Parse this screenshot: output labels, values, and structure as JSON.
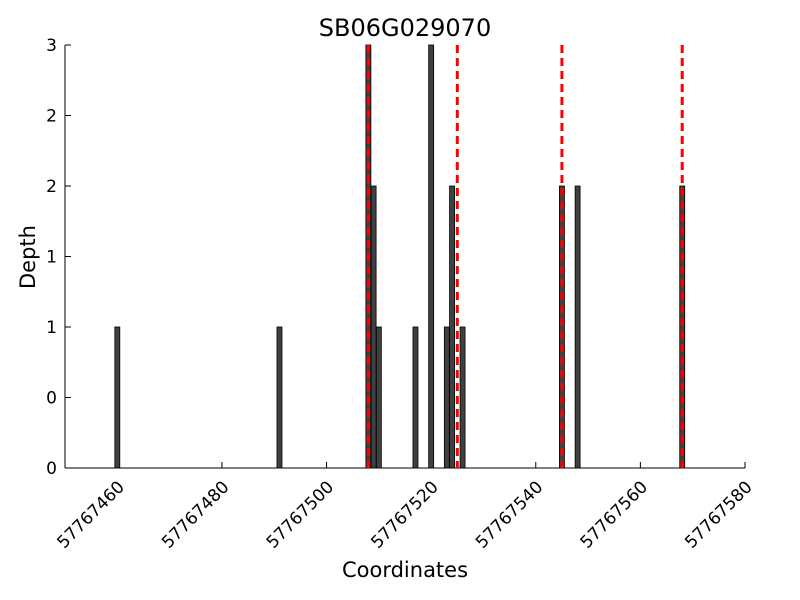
{
  "chart_data": {
    "type": "bar",
    "title": "SB06G029070",
    "xlabel": "Coordinates",
    "ylabel": "Depth",
    "xlim": [
      57767450,
      57767580
    ],
    "ylim": [
      0,
      3
    ],
    "x_ticks": [
      57767460,
      57767480,
      57767500,
      57767520,
      57767540,
      57767560,
      57767580
    ],
    "y_ticks": [
      0,
      0.5,
      1,
      1.5,
      2,
      2.5,
      3
    ],
    "y_tick_labels": [
      "0",
      "0",
      "1",
      "1",
      "2",
      "2",
      "3"
    ],
    "x": [
      57767460,
      57767491,
      57767508,
      57767509,
      57767510,
      57767517,
      57767520,
      57767523,
      57767524,
      57767526,
      57767545,
      57767548,
      57767568
    ],
    "values": [
      1,
      1,
      3,
      2,
      1,
      1,
      3,
      1,
      2,
      1,
      2,
      2,
      2
    ],
    "bar_color": "#404040",
    "reference_lines": {
      "style": "dashed",
      "color": "#ff0000",
      "x": [
        57767508,
        57767525,
        57767545,
        57767568
      ]
    },
    "grid": false
  }
}
